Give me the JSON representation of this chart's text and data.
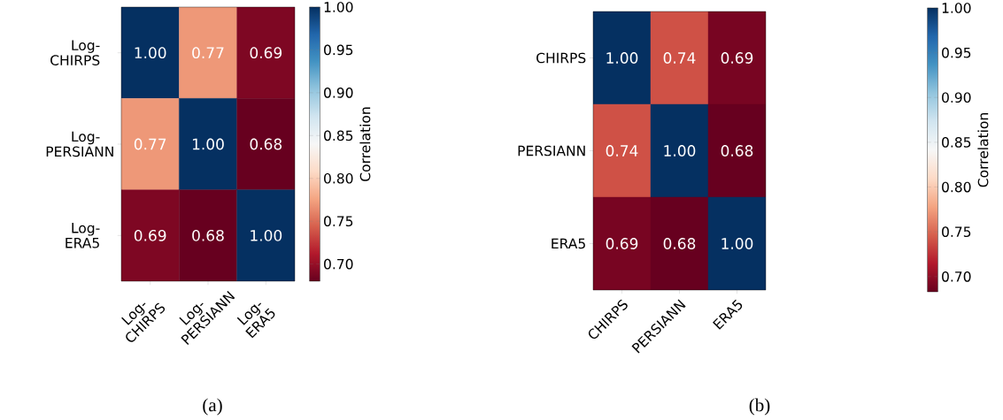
{
  "chart_data": [
    {
      "type": "heatmap",
      "categories": [
        "Log-CHIRPS",
        "Log-PERSIANN",
        "Log-ERA5"
      ],
      "y_categories": [
        "Log-CHIRPS",
        "Log-PERSIANN",
        "Log-ERA5"
      ],
      "cells": [
        [
          1.0,
          0.77,
          0.69
        ],
        [
          0.77,
          1.0,
          0.68
        ],
        [
          0.69,
          0.68,
          1.0
        ]
      ],
      "data_labels": true,
      "cell_labels": [
        [
          "1.00",
          "0.77",
          "0.69"
        ],
        [
          "0.77",
          "1.00",
          "0.68"
        ],
        [
          "0.69",
          "0.68",
          "1.00"
        ]
      ],
      "clabel": "Correlation",
      "clim": [
        0.68,
        1.0
      ],
      "cticks": [
        {
          "value": 0.7,
          "label": "0.70"
        },
        {
          "value": 0.75,
          "label": "0.75"
        },
        {
          "value": 0.8,
          "label": "0.80"
        },
        {
          "value": 0.85,
          "label": "0.85"
        },
        {
          "value": 0.9,
          "label": "0.90"
        },
        {
          "value": 0.95,
          "label": "0.95"
        },
        {
          "value": 1.0,
          "label": "1.00"
        }
      ],
      "annotations": [
        "(a)"
      ]
    },
    {
      "type": "heatmap",
      "categories": [
        "CHIRPS",
        "PERSIANN",
        "ERA5"
      ],
      "y_categories": [
        "CHIRPS",
        "PERSIANN",
        "ERA5"
      ],
      "cells": [
        [
          1.0,
          0.74,
          0.69
        ],
        [
          0.74,
          1.0,
          0.68
        ],
        [
          0.69,
          0.68,
          1.0
        ]
      ],
      "data_labels": true,
      "cell_labels": [
        [
          "1.00",
          "0.74",
          "0.69"
        ],
        [
          "0.74",
          "1.00",
          "0.68"
        ],
        [
          "0.69",
          "0.68",
          "1.00"
        ]
      ],
      "clabel": "Correlation",
      "clim": [
        0.683,
        1.0
      ],
      "cticks": [
        {
          "value": 0.7,
          "label": "0.70"
        },
        {
          "value": 0.75,
          "label": "0.75"
        },
        {
          "value": 0.8,
          "label": "0.80"
        },
        {
          "value": 0.85,
          "label": "0.85"
        },
        {
          "value": 0.9,
          "label": "0.90"
        },
        {
          "value": 0.95,
          "label": "0.95"
        },
        {
          "value": 1.0,
          "label": "1.00"
        }
      ],
      "annotations": [
        "(b)"
      ]
    }
  ]
}
